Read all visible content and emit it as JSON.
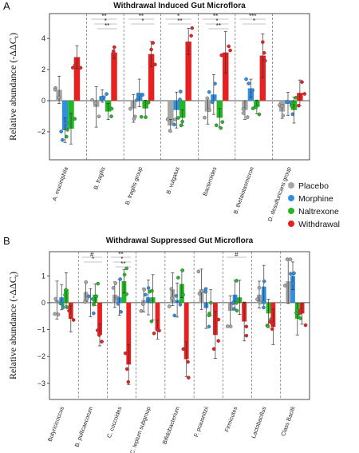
{
  "colors": {
    "Placebo": "#a6a6a6",
    "Morphine": "#2f8fe0",
    "Naltrexone": "#22b822",
    "Withdrawal": "#e8201f"
  },
  "legend": [
    "Placebo",
    "Morphine",
    "Naltrexone",
    "Withdrawal"
  ],
  "ylabel": "Relative abundance (-ΔΔC",
  "ylabel_sub": "t",
  "ylabel_close": ")",
  "chart_data": [
    {
      "type": "bar",
      "panel": "A",
      "title": "Withdrawal Induced Gut Microflora",
      "ylim": [
        -3.8,
        5.6
      ],
      "yticks": [
        -2,
        0,
        2,
        4
      ],
      "categories": [
        "A. muciniphila",
        "B. fragilis",
        "B. fragilis group",
        "B. vulgatus",
        "Bacteroides",
        "B. thetaiotaomicron",
        "D. desulfuricans group"
      ],
      "series": [
        {
          "name": "Placebo",
          "values": [
            0.7,
            -0.4,
            -0.5,
            -1.6,
            -0.7,
            -0.6,
            -0.7
          ]
        },
        {
          "name": "Morphine",
          "values": [
            -1.9,
            0.3,
            0.5,
            -0.6,
            0.4,
            0.8,
            -0.2
          ]
        },
        {
          "name": "Naltrexone",
          "values": [
            -1.8,
            -0.7,
            -0.5,
            -1.1,
            -1.1,
            -0.4,
            -0.6
          ]
        },
        {
          "name": "Withdrawal",
          "values": [
            2.8,
            3.1,
            3.0,
            3.8,
            3.1,
            2.9,
            0.5
          ]
        }
      ],
      "significance": [
        {
          "category": 1,
          "labels": [
            "**",
            "*",
            "**"
          ]
        },
        {
          "category": 2,
          "labels": [
            "**",
            "*"
          ]
        },
        {
          "category": 3,
          "labels": [
            "*",
            "**"
          ]
        },
        {
          "category": 4,
          "labels": [
            "**",
            "*",
            "**"
          ]
        },
        {
          "category": 5,
          "labels": [
            "***",
            "*"
          ]
        }
      ]
    },
    {
      "type": "bar",
      "panel": "B",
      "title": "Withdrawal Suppressed Gut Microflora",
      "ylim": [
        -3.6,
        1.9
      ],
      "yticks": [
        -3,
        -2,
        -1,
        0,
        1
      ],
      "categories": [
        "Butyricicoccus",
        "B. pullicaecorum",
        "C. coccoides",
        "C. leptum subgroup",
        "Bifidobacterium",
        "F. prausnitzii",
        "Firmicutes",
        "Lactobacillus",
        "Class Bacilli"
      ],
      "series": [
        {
          "name": "Placebo",
          "values": [
            0.1,
            0.4,
            0.3,
            0.1,
            0.5,
            0.5,
            -0.3,
            0.3,
            0.8
          ]
        },
        {
          "name": "Morphine",
          "values": [
            0.2,
            0.0,
            0.2,
            0.2,
            0.1,
            -0.2,
            0.3,
            0.6,
            1.0
          ]
        },
        {
          "name": "Naltrexone",
          "values": [
            0.5,
            0.3,
            0.8,
            0.2,
            0.7,
            0.0,
            0.2,
            -0.4,
            -0.6
          ]
        },
        {
          "name": "Withdrawal",
          "values": [
            -0.6,
            -1.2,
            -2.3,
            -1.0,
            -2.1,
            -1.2,
            -0.7,
            -0.9,
            -0.4
          ]
        }
      ],
      "significance": [
        {
          "category": 1,
          "labels": [
            "#",
            "*"
          ]
        },
        {
          "category": 2,
          "labels": [
            "**",
            "*",
            "**"
          ]
        },
        {
          "category": 6,
          "labels": [
            "#"
          ]
        }
      ]
    }
  ]
}
